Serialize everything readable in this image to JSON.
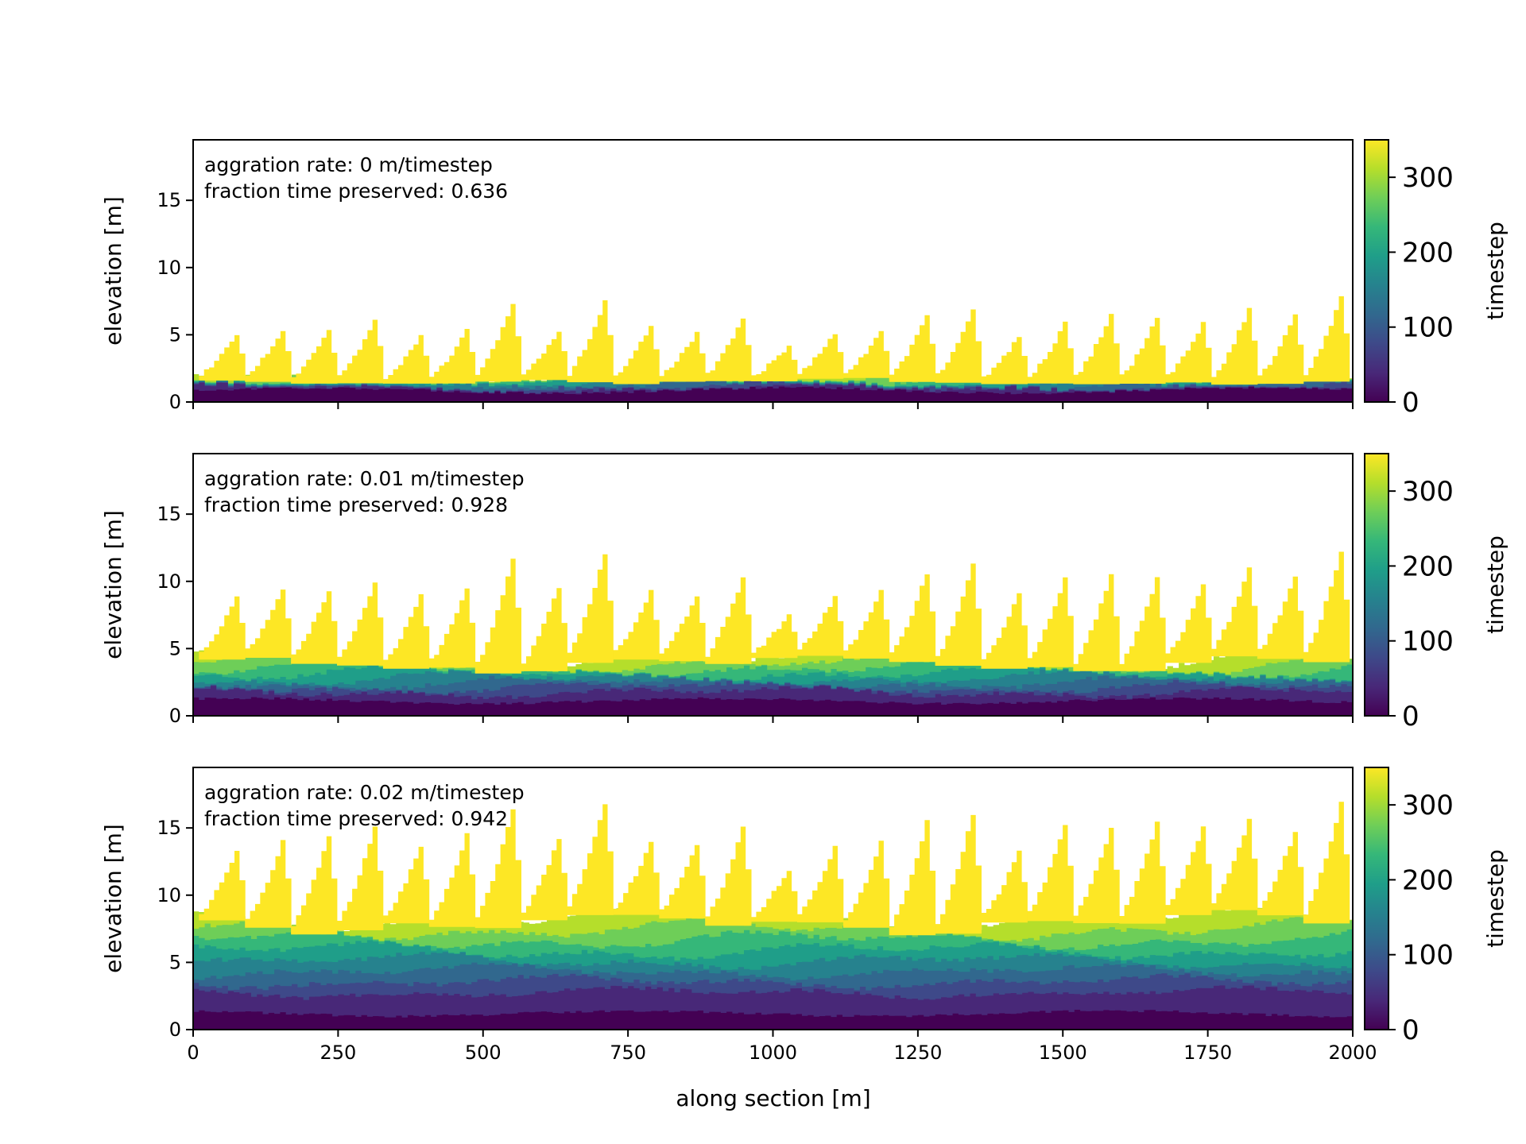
{
  "colors": {
    "viridis": [
      "#440154",
      "#482878",
      "#3e4989",
      "#31688e",
      "#26828e",
      "#1f9e89",
      "#35b779",
      "#6ece58",
      "#b5de2b",
      "#fde725"
    ],
    "axis": "#000000"
  },
  "shared": {
    "xlabel": "along section [m]",
    "xlim": [
      0,
      2000
    ],
    "xticks": [
      0,
      250,
      500,
      750,
      1000,
      1250,
      1500,
      1750,
      2000
    ],
    "ylabel": "elevation [m]",
    "ylim": [
      0,
      19.5
    ],
    "yticks": [
      0,
      5,
      10,
      15
    ],
    "colorbar_label": "timestep",
    "colorbar_range": [
      0,
      350
    ],
    "colorbar_ticks": [
      0,
      100,
      200,
      300
    ]
  },
  "chart_data": [
    {
      "type": "area",
      "annotation": [
        "aggration rate: 0 m/timestep",
        "fraction time preserved: 0.636"
      ],
      "aggradation_rate": 0,
      "fraction_time_preserved": 0.636,
      "base_elevation": 0.85,
      "stratigraphy_top": 1.2,
      "bedform_heights": [
        5.0,
        5.4,
        5.3,
        6.2,
        4.9,
        5.4,
        7.4,
        5.3,
        7.6,
        5.8,
        5.1,
        6.2,
        4.2,
        5.1,
        5.2,
        6.4,
        6.8,
        4.9,
        5.9,
        6.6,
        6.3,
        5.9,
        7.0,
        6.4,
        7.8
      ]
    },
    {
      "type": "area",
      "annotation": [
        "aggration rate: 0.01 m/timestep",
        "fraction time preserved: 0.928"
      ],
      "aggradation_rate": 0.01,
      "fraction_time_preserved": 0.928,
      "base_elevation": 1.1,
      "stratigraphy_top": 4.0,
      "bedform_heights": [
        8.9,
        9.4,
        9.4,
        10.0,
        9.0,
        9.4,
        11.8,
        9.6,
        12.1,
        9.3,
        9.0,
        10.3,
        7.6,
        8.9,
        9.3,
        10.6,
        11.2,
        9.1,
        10.3,
        10.5,
        10.3,
        9.8,
        11.0,
        10.5,
        12.2
      ]
    },
    {
      "type": "area",
      "annotation": [
        "aggration rate: 0.02 m/timestep",
        "fraction time preserved: 0.942"
      ],
      "aggradation_rate": 0.02,
      "fraction_time_preserved": 0.942,
      "base_elevation": 1.2,
      "stratigraphy_top": 8.2,
      "bedform_heights": [
        13.3,
        14.0,
        14.4,
        15.2,
        13.6,
        14.5,
        16.5,
        14.3,
        16.9,
        14.0,
        13.8,
        15.1,
        11.9,
        13.6,
        14.0,
        15.5,
        16.1,
        13.2,
        15.3,
        14.9,
        15.4,
        15.2,
        15.6,
        14.8,
        17.0
      ]
    }
  ]
}
